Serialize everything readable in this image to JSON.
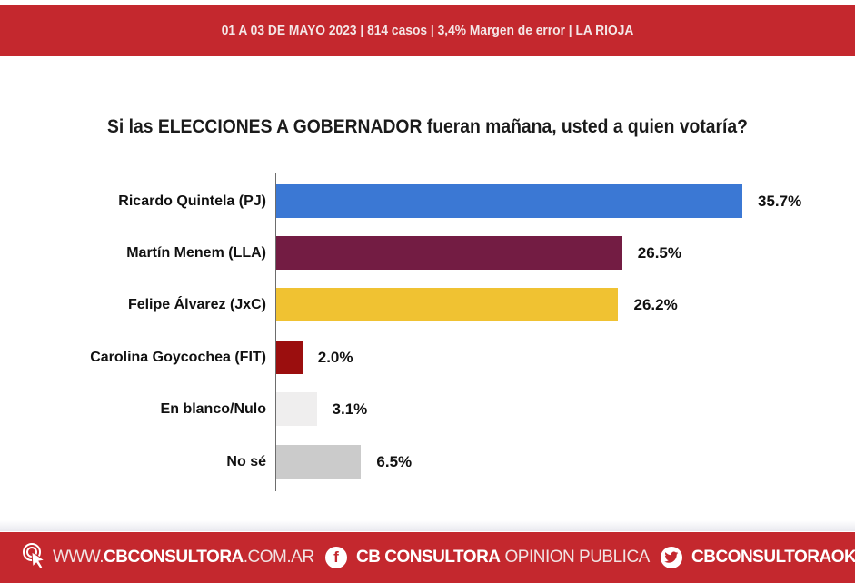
{
  "header": {
    "text": "01 A 03 DE MAYO 2023 | 814 casos  |  3,4% Margen de error  | LA RIOJA",
    "date_range": "01 A 03 DE MAYO 2023",
    "cases": "814 casos",
    "margin_of_error": "3,4% Margen de error",
    "region": "LA RIOJA",
    "background_color": "#c4282e"
  },
  "chart_data": {
    "type": "bar",
    "orientation": "horizontal",
    "title": "Si las ELECCIONES A GOBERNADOR fueran mañana, usted a quien votaría?",
    "xlabel": "",
    "ylabel": "",
    "grid": false,
    "legend": null,
    "categories": [
      "Ricardo Quintela (PJ)",
      "Martín Menem (LLA)",
      "Felipe Álvarez (JxC)",
      "Carolina Goycochea (FIT)",
      "En blanco/Nulo",
      "No sé"
    ],
    "values": [
      35.7,
      26.5,
      26.2,
      2.0,
      3.1,
      6.5
    ],
    "value_labels": [
      "35.7%",
      "26.5%",
      "26.2%",
      "2.0%",
      "3.1%",
      "6.5%"
    ],
    "colors": [
      "#3b78d4",
      "#731c43",
      "#f0c232",
      "#9b0e0e",
      "#efeeee",
      "#cbcbcb"
    ],
    "unit": "%"
  },
  "footer": {
    "website_prefix": "WWW.",
    "website_brand": "CBCONSULTORA",
    "website_suffix": ".COM.AR",
    "facebook_brand": "CB CONSULTORA",
    "facebook_suffix": "OPINION PUBLICA",
    "twitter_handle": "CBCONSULTORAOK",
    "icons": [
      "cursor-click-icon",
      "facebook-icon",
      "twitter-icon"
    ]
  }
}
